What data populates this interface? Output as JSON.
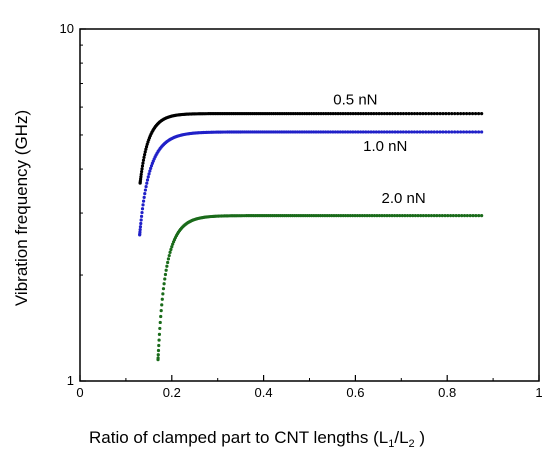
{
  "chart_data": {
    "type": "scatter",
    "title": "",
    "xlabel": "Ratio of clamped part to CNT lengths (L",
    "xlabel_sub1": "1",
    "xlabel_sep": "/L",
    "xlabel_sub2": "2",
    "xlabel_end": " )",
    "ylabel": "Vibration frequency (GHz)",
    "xlim": [
      0,
      1
    ],
    "ylim": [
      1,
      10
    ],
    "y_scale": "log",
    "grid": false,
    "x_ticks": [
      {
        "value": 0,
        "label": "0"
      },
      {
        "value": 0.2,
        "label": "0.2"
      },
      {
        "value": 0.4,
        "label": "0.4"
      },
      {
        "value": 0.6,
        "label": "0.6"
      },
      {
        "value": 0.8,
        "label": "0.8"
      },
      {
        "value": 1,
        "label": "1"
      }
    ],
    "y_ticks": [
      {
        "value": 1,
        "label": "1"
      },
      {
        "value": 10,
        "label": "10"
      }
    ],
    "series": [
      {
        "name": "0.5 nN",
        "color": "#000000",
        "x_start": 0.131,
        "x_end": 0.875,
        "y_start": 3.65,
        "y_plateau": 5.75,
        "rate": 45
      },
      {
        "name": "1.0 nN",
        "color": "#2020c8",
        "x_start": 0.13,
        "x_end": 0.875,
        "y_start": 2.6,
        "y_plateau": 5.1,
        "rate": 35
      },
      {
        "name": "2.0 nN",
        "color": "#1a6b1a",
        "x_start": 0.17,
        "x_end": 0.875,
        "y_start": 1.15,
        "y_plateau": 2.95,
        "rate": 40
      }
    ],
    "annotations": [
      {
        "series": 0,
        "text": "0.5 nN",
        "x": 0.6,
        "y": 6.1
      },
      {
        "series": 1,
        "text": "1.0 nN",
        "x": 0.665,
        "y": 4.5
      },
      {
        "series": 2,
        "text": "2.0 nN",
        "x": 0.705,
        "y": 3.2
      }
    ]
  }
}
